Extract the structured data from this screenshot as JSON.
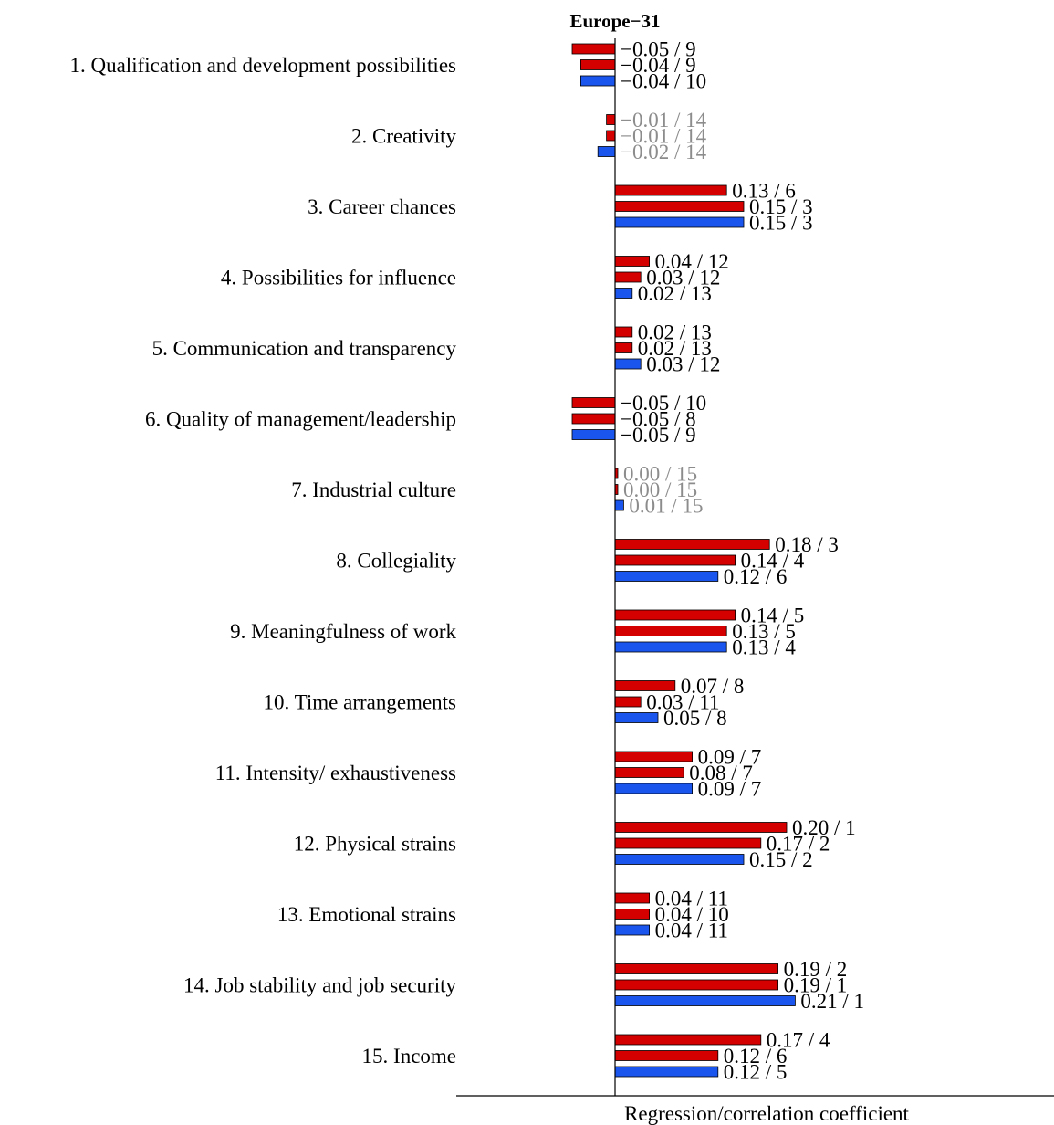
{
  "chart_data": {
    "type": "bar",
    "orientation": "horizontal",
    "title": "Europe−31",
    "xlabel": "Regression/correlation coefficient",
    "ylabel": "",
    "grid": false,
    "legend": false,
    "xlim": [
      -0.1,
      0.35
    ],
    "colors": {
      "bar_red": "#d40000",
      "bar_blue": "#1a56ee",
      "label": "#000000",
      "label_muted": "#8c8c8c"
    },
    "categories": [
      "1. Qualification and development possibilities",
      "2. Creativity",
      "3. Career chances",
      "4. Possibilities for influence",
      "5. Communication and transparency",
      "6. Quality of management/leadership",
      "7. Industrial culture",
      "8. Collegiality",
      "9. Meaningfulness of work",
      "10. Time arrangements",
      "11. Intensity/ exhaustiveness",
      "12. Physical strains",
      "13. Emotional strains",
      "14. Job stability and job security",
      "15. Income"
    ],
    "series": [
      {
        "color": "#d40000",
        "values": [
          -0.05,
          -0.01,
          0.13,
          0.04,
          0.02,
          -0.05,
          0.0,
          0.18,
          0.14,
          0.07,
          0.09,
          0.2,
          0.04,
          0.19,
          0.17
        ],
        "labels": [
          "−0.05 / 9",
          "−0.01 / 14",
          "0.13 / 6",
          "0.04 / 12",
          "0.02 / 13",
          "−0.05 / 10",
          "0.00 / 15",
          "0.18 / 3",
          "0.14 / 5",
          "0.07 / 8",
          "0.09 / 7",
          "0.20 / 1",
          "0.04 / 11",
          "0.19 / 2",
          "0.17 / 4"
        ]
      },
      {
        "color": "#d40000",
        "values": [
          -0.04,
          -0.01,
          0.15,
          0.03,
          0.02,
          -0.05,
          0.0,
          0.14,
          0.13,
          0.03,
          0.08,
          0.17,
          0.04,
          0.19,
          0.12
        ],
        "labels": [
          "−0.04 / 9",
          "−0.01 / 14",
          "0.15 / 3",
          "0.03 / 12",
          "0.02 / 13",
          "−0.05 / 8",
          "0.00 / 15",
          "0.14 / 4",
          "0.13 / 5",
          "0.03 / 11",
          "0.08 / 7",
          "0.17 / 2",
          "0.04 / 10",
          "0.19 / 1",
          "0.12 / 6"
        ]
      },
      {
        "color": "#1a56ee",
        "values": [
          -0.04,
          -0.02,
          0.15,
          0.02,
          0.03,
          -0.05,
          0.01,
          0.12,
          0.13,
          0.05,
          0.09,
          0.15,
          0.04,
          0.21,
          0.12
        ],
        "labels": [
          "−0.04 / 10",
          "−0.02 / 14",
          "0.15 / 3",
          "0.02 / 13",
          "0.03 / 12",
          "−0.05 / 9",
          "0.01 / 15",
          "0.12 / 6",
          "0.13 / 4",
          "0.05 / 8",
          "0.09 / 7",
          "0.15 / 2",
          "0.04 / 11",
          "0.21 / 1",
          "0.12 / 5"
        ]
      }
    ],
    "muted_categories": [
      1,
      6
    ]
  }
}
